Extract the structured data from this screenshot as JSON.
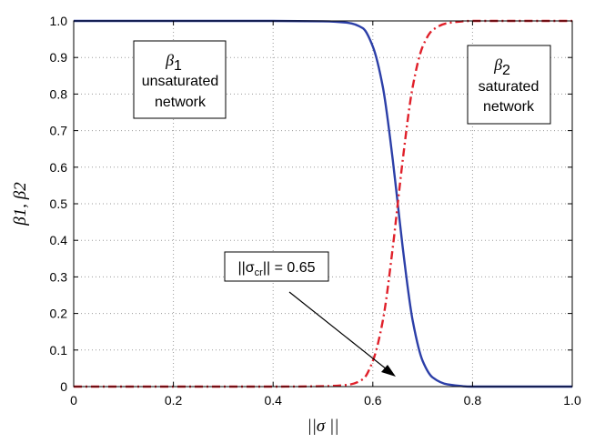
{
  "chart_data": {
    "type": "line",
    "xlabel": "||σ ||",
    "ylabel": "β1, β2",
    "xlim": [
      0,
      1
    ],
    "ylim": [
      0,
      1
    ],
    "xticks": [
      "0",
      "0.2",
      "0.4",
      "0.6",
      "0.8",
      "1.0"
    ],
    "yticks": [
      "0",
      "0.1",
      "0.2",
      "0.3",
      "0.4",
      "0.5",
      "0.6",
      "0.7",
      "0.8",
      "0.9",
      "1.0"
    ],
    "grid": true,
    "x": [
      0,
      0.1,
      0.2,
      0.3,
      0.4,
      0.5,
      0.55,
      0.58,
      0.6,
      0.62,
      0.64,
      0.65,
      0.66,
      0.68,
      0.7,
      0.72,
      0.75,
      0.8,
      0.85,
      0.9,
      1.0
    ],
    "series": [
      {
        "name": "β1",
        "color": "#2c3fa8",
        "style": "solid",
        "values": [
          1.0,
          1.0,
          1.0,
          1.0,
          1.0,
          0.999,
          0.995,
          0.98,
          0.93,
          0.82,
          0.62,
          0.5,
          0.38,
          0.18,
          0.07,
          0.025,
          0.006,
          0.0,
          0.0,
          0.0,
          0.0
        ]
      },
      {
        "name": "β2",
        "color": "#e0202a",
        "style": "dash-dot",
        "values": [
          0.0,
          0.0,
          0.0,
          0.0,
          0.0,
          0.001,
          0.005,
          0.02,
          0.07,
          0.18,
          0.38,
          0.5,
          0.62,
          0.82,
          0.93,
          0.975,
          0.994,
          1.0,
          1.0,
          1.0,
          1.0
        ]
      }
    ],
    "annotations": {
      "beta1_symbol": "β",
      "beta1_sub": "1",
      "beta1_line1": "unsaturated",
      "beta1_line2": "network",
      "beta2_symbol": "β",
      "beta2_sub": "2",
      "beta2_line1": "saturated",
      "beta2_line2": "network",
      "critical_prefix": "||σ",
      "critical_sub": "cr",
      "critical_suffix": "|| = 0.65",
      "critical_x": 0.65
    }
  }
}
